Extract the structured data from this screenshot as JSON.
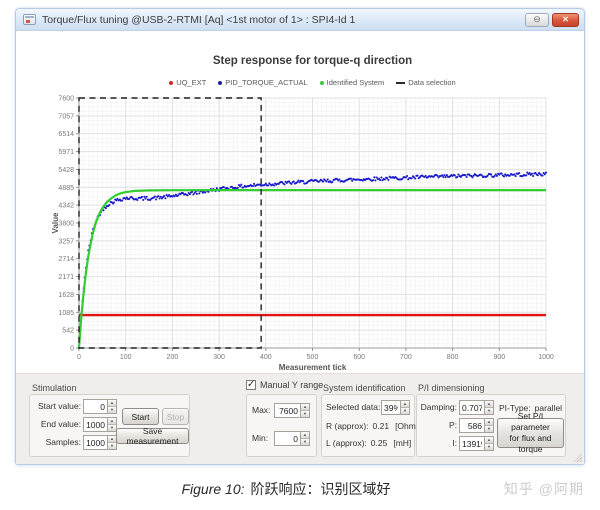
{
  "window": {
    "title": "Torque/Flux tuning @USB-2-RTMI [Aq] <1st motor of 1> : SPI4-Id 1",
    "minimize_glyph": "⊖",
    "close_glyph": "✕"
  },
  "chart_data": {
    "type": "line",
    "title": "Step response for torque-q direction",
    "xlabel": "Measurement tick",
    "ylabel": "Value",
    "xlim": [
      0,
      1000
    ],
    "ylim": [
      0,
      7600
    ],
    "x_ticks": [
      0,
      100,
      200,
      300,
      400,
      500,
      600,
      700,
      800,
      900,
      1000
    ],
    "y_tick_labels": [
      "0",
      "542",
      "1085",
      "1628",
      "2171",
      "2714",
      "3257",
      "3800",
      "4342",
      "4885",
      "5428",
      "5971",
      "6514",
      "7057",
      "7600"
    ],
    "grid": true,
    "minor_grid": {
      "x_step": 10,
      "y_divisions": 56
    },
    "legend_position": "top",
    "legend": [
      {
        "label": "UQ_EXT",
        "marker": "dot",
        "color": "#d42a1e"
      },
      {
        "label": "PID_TORQUE_ACTUAL",
        "marker": "dot",
        "color": "#20209e"
      },
      {
        "label": "Identified System",
        "marker": "dot",
        "color": "#3ec63e"
      },
      {
        "label": "Data selection",
        "marker": "dash",
        "color": "#2b2b2b"
      }
    ],
    "series": [
      {
        "name": "UQ_EXT",
        "type": "line",
        "color": "#e01414",
        "width": 2.4,
        "points": [
          [
            0,
            1000
          ],
          [
            1000,
            1000
          ]
        ]
      },
      {
        "name": "PID_TORQUE_ACTUAL",
        "type": "scatter",
        "color": "#1a1acd",
        "dot_radius": 1.05,
        "noise": 55,
        "points": [
          [
            0,
            0
          ],
          [
            5,
            1030
          ],
          [
            10,
            1830
          ],
          [
            15,
            2450
          ],
          [
            20,
            2930
          ],
          [
            25,
            3300
          ],
          [
            30,
            3590
          ],
          [
            40,
            3980
          ],
          [
            50,
            4200
          ],
          [
            60,
            4340
          ],
          [
            70,
            4430
          ],
          [
            80,
            4490
          ],
          [
            100,
            4560
          ],
          [
            125,
            4545
          ],
          [
            150,
            4550
          ],
          [
            175,
            4575
          ],
          [
            200,
            4620
          ],
          [
            250,
            4720
          ],
          [
            300,
            4830
          ],
          [
            350,
            4915
          ],
          [
            400,
            4975
          ],
          [
            450,
            5020
          ],
          [
            500,
            5060
          ],
          [
            550,
            5095
          ],
          [
            600,
            5125
          ],
          [
            650,
            5150
          ],
          [
            700,
            5175
          ],
          [
            750,
            5200
          ],
          [
            800,
            5220
          ],
          [
            850,
            5240
          ],
          [
            900,
            5258
          ],
          [
            950,
            5274
          ],
          [
            1000,
            5290
          ]
        ]
      },
      {
        "name": "Identified System",
        "type": "line",
        "color": "#33cc33",
        "width": 2.2,
        "points": [
          [
            0,
            0
          ],
          [
            5,
            940
          ],
          [
            10,
            1690
          ],
          [
            15,
            2300
          ],
          [
            20,
            2790
          ],
          [
            25,
            3180
          ],
          [
            30,
            3500
          ],
          [
            35,
            3760
          ],
          [
            40,
            3960
          ],
          [
            45,
            4120
          ],
          [
            50,
            4250
          ],
          [
            55,
            4350
          ],
          [
            60,
            4440
          ],
          [
            70,
            4560
          ],
          [
            80,
            4650
          ],
          [
            90,
            4705
          ],
          [
            100,
            4740
          ],
          [
            120,
            4775
          ],
          [
            150,
            4790
          ],
          [
            200,
            4798
          ],
          [
            300,
            4800
          ],
          [
            400,
            4800
          ],
          [
            500,
            4800
          ],
          [
            600,
            4800
          ],
          [
            700,
            4800
          ],
          [
            800,
            4800
          ],
          [
            900,
            4800
          ],
          [
            1000,
            4800
          ]
        ]
      },
      {
        "name": "Data selection",
        "type": "selection_rect",
        "color": "#1f1f1f",
        "rect": [
          0,
          0,
          390,
          7600
        ]
      }
    ]
  },
  "controls": {
    "stimulation": {
      "title": "Stimulation",
      "fields": [
        {
          "label": "Start value:",
          "value": "0"
        },
        {
          "label": "End value:",
          "value": "1000"
        },
        {
          "label": "Samples:",
          "value": "1000"
        }
      ],
      "start_button": "Start",
      "stop_button": "Stop",
      "save_button": "Save measurement"
    },
    "y_range": {
      "checkbox_label": "Manual Y range",
      "checked": true,
      "max_label": "Max:",
      "max_value": "7600",
      "min_label": "Min:",
      "min_value": "0"
    },
    "system_identification": {
      "title": "System identification",
      "selected_label": "Selected data:",
      "selected_value": "39%",
      "rows": [
        {
          "label": "R (approx):",
          "value": "0.21",
          "unit": "[Ohm]"
        },
        {
          "label": "L (approx):",
          "value": "0.25",
          "unit": "[mH]"
        }
      ]
    },
    "pi_dimensioning": {
      "title": "P/I dimensioning",
      "fields": [
        {
          "label": "Damping:",
          "value": "0.707"
        },
        {
          "label": "P:",
          "value": "586"
        },
        {
          "label": "I:",
          "value": "13919"
        }
      ],
      "pi_type_label": "PI-Type:",
      "pi_type_value": "parallel",
      "set_button_line1": "Set P/I parameter",
      "set_button_line2": "for flux and torque"
    }
  },
  "caption": {
    "figure_label": "Figure 10:",
    "text": "阶跃响应：识别区域好"
  },
  "watermark": "知乎 @阿期"
}
